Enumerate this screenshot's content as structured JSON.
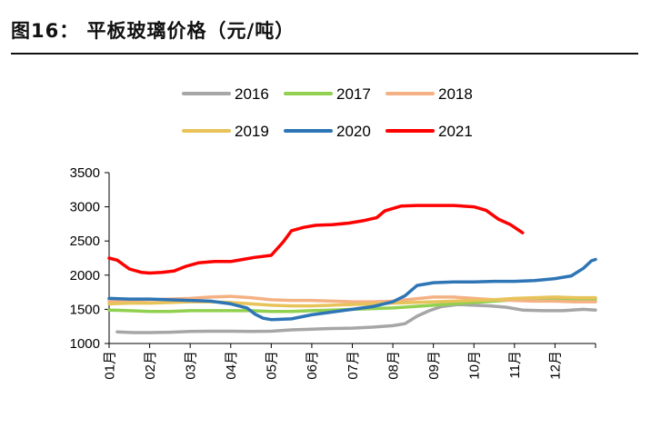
{
  "header": {
    "title": "图16：  平板玻璃价格（元/吨）"
  },
  "chart_data": {
    "type": "line",
    "title": "图16：  平板玻璃价格（元/吨）",
    "xlabel": "",
    "ylabel": "",
    "ylim": [
      1000,
      3500
    ],
    "yticks": [
      1000,
      1500,
      2000,
      2500,
      3000,
      3500
    ],
    "x_ticks": [
      "01月",
      "02月",
      "03月",
      "04月",
      "05月",
      "06月",
      "07月",
      "08月",
      "09月",
      "10月",
      "11月",
      "12月"
    ],
    "x_range": [
      1,
      13
    ],
    "grid": false,
    "legend_position": "top",
    "series": [
      {
        "name": "2016",
        "color": "#a6a6a6",
        "points": [
          [
            1.2,
            1170
          ],
          [
            1.6,
            1160
          ],
          [
            2.0,
            1160
          ],
          [
            2.5,
            1165
          ],
          [
            3.0,
            1175
          ],
          [
            3.5,
            1180
          ],
          [
            4.0,
            1180
          ],
          [
            4.5,
            1175
          ],
          [
            5.0,
            1180
          ],
          [
            5.5,
            1200
          ],
          [
            6.0,
            1210
          ],
          [
            6.5,
            1220
          ],
          [
            7.0,
            1225
          ],
          [
            7.5,
            1240
          ],
          [
            8.0,
            1260
          ],
          [
            8.3,
            1290
          ],
          [
            8.6,
            1400
          ],
          [
            8.9,
            1480
          ],
          [
            9.2,
            1540
          ],
          [
            9.6,
            1570
          ],
          [
            10.0,
            1560
          ],
          [
            10.4,
            1550
          ],
          [
            10.8,
            1530
          ],
          [
            11.2,
            1490
          ],
          [
            11.7,
            1480
          ],
          [
            12.2,
            1480
          ],
          [
            12.7,
            1500
          ],
          [
            13.0,
            1490
          ]
        ]
      },
      {
        "name": "2017",
        "color": "#92d050",
        "points": [
          [
            1.0,
            1490
          ],
          [
            1.5,
            1480
          ],
          [
            2.0,
            1470
          ],
          [
            2.5,
            1470
          ],
          [
            3.0,
            1480
          ],
          [
            3.5,
            1480
          ],
          [
            4.0,
            1480
          ],
          [
            4.5,
            1480
          ],
          [
            5.0,
            1470
          ],
          [
            5.5,
            1470
          ],
          [
            6.0,
            1480
          ],
          [
            6.5,
            1490
          ],
          [
            7.0,
            1500
          ],
          [
            7.5,
            1510
          ],
          [
            8.0,
            1520
          ],
          [
            8.5,
            1540
          ],
          [
            9.0,
            1560
          ],
          [
            9.5,
            1580
          ],
          [
            10.0,
            1600
          ],
          [
            10.5,
            1620
          ],
          [
            11.0,
            1640
          ],
          [
            11.5,
            1650
          ],
          [
            12.0,
            1650
          ],
          [
            12.5,
            1650
          ],
          [
            13.0,
            1650
          ]
        ]
      },
      {
        "name": "2018",
        "color": "#f4b183",
        "points": [
          [
            1.0,
            1620
          ],
          [
            1.5,
            1630
          ],
          [
            2.0,
            1640
          ],
          [
            2.5,
            1650
          ],
          [
            3.0,
            1660
          ],
          [
            3.5,
            1680
          ],
          [
            4.0,
            1690
          ],
          [
            4.5,
            1670
          ],
          [
            5.0,
            1640
          ],
          [
            5.5,
            1630
          ],
          [
            6.0,
            1630
          ],
          [
            6.5,
            1620
          ],
          [
            7.0,
            1610
          ],
          [
            7.5,
            1610
          ],
          [
            8.0,
            1620
          ],
          [
            8.5,
            1650
          ],
          [
            9.0,
            1680
          ],
          [
            9.5,
            1680
          ],
          [
            10.0,
            1660
          ],
          [
            10.5,
            1640
          ],
          [
            11.0,
            1630
          ],
          [
            11.5,
            1620
          ],
          [
            12.0,
            1620
          ],
          [
            12.5,
            1610
          ],
          [
            13.0,
            1610
          ]
        ]
      },
      {
        "name": "2019",
        "color": "#e8c35a",
        "points": [
          [
            1.0,
            1580
          ],
          [
            1.5,
            1590
          ],
          [
            2.0,
            1590
          ],
          [
            2.5,
            1600
          ],
          [
            3.0,
            1610
          ],
          [
            3.5,
            1610
          ],
          [
            4.0,
            1600
          ],
          [
            4.5,
            1580
          ],
          [
            5.0,
            1560
          ],
          [
            5.5,
            1550
          ],
          [
            6.0,
            1550
          ],
          [
            6.5,
            1560
          ],
          [
            7.0,
            1570
          ],
          [
            7.5,
            1580
          ],
          [
            8.0,
            1590
          ],
          [
            8.5,
            1600
          ],
          [
            9.0,
            1610
          ],
          [
            9.5,
            1620
          ],
          [
            10.0,
            1630
          ],
          [
            10.5,
            1640
          ],
          [
            11.0,
            1660
          ],
          [
            11.5,
            1670
          ],
          [
            12.0,
            1680
          ],
          [
            12.5,
            1670
          ],
          [
            13.0,
            1670
          ]
        ]
      },
      {
        "name": "2020",
        "color": "#2e75b6",
        "points": [
          [
            1.0,
            1660
          ],
          [
            1.5,
            1650
          ],
          [
            2.0,
            1650
          ],
          [
            2.5,
            1640
          ],
          [
            3.0,
            1630
          ],
          [
            3.5,
            1620
          ],
          [
            4.0,
            1580
          ],
          [
            4.4,
            1520
          ],
          [
            4.6,
            1430
          ],
          [
            4.8,
            1370
          ],
          [
            5.0,
            1350
          ],
          [
            5.5,
            1360
          ],
          [
            6.0,
            1420
          ],
          [
            6.5,
            1460
          ],
          [
            7.0,
            1500
          ],
          [
            7.5,
            1540
          ],
          [
            8.0,
            1610
          ],
          [
            8.3,
            1700
          ],
          [
            8.6,
            1850
          ],
          [
            9.0,
            1890
          ],
          [
            9.5,
            1900
          ],
          [
            10.0,
            1900
          ],
          [
            10.5,
            1910
          ],
          [
            11.0,
            1910
          ],
          [
            11.5,
            1920
          ],
          [
            12.0,
            1950
          ],
          [
            12.4,
            1990
          ],
          [
            12.7,
            2100
          ],
          [
            12.9,
            2210
          ],
          [
            13.0,
            2230
          ]
        ]
      },
      {
        "name": "2021",
        "color": "#ff0000",
        "points": [
          [
            1.0,
            2250
          ],
          [
            1.2,
            2220
          ],
          [
            1.5,
            2090
          ],
          [
            1.8,
            2040
          ],
          [
            2.0,
            2030
          ],
          [
            2.3,
            2040
          ],
          [
            2.6,
            2060
          ],
          [
            2.9,
            2130
          ],
          [
            3.2,
            2180
          ],
          [
            3.6,
            2200
          ],
          [
            4.0,
            2200
          ],
          [
            4.3,
            2230
          ],
          [
            4.6,
            2260
          ],
          [
            5.0,
            2290
          ],
          [
            5.3,
            2490
          ],
          [
            5.5,
            2650
          ],
          [
            5.8,
            2700
          ],
          [
            6.1,
            2730
          ],
          [
            6.5,
            2740
          ],
          [
            6.9,
            2760
          ],
          [
            7.3,
            2800
          ],
          [
            7.6,
            2840
          ],
          [
            7.8,
            2940
          ],
          [
            8.2,
            3010
          ],
          [
            8.6,
            3020
          ],
          [
            9.0,
            3020
          ],
          [
            9.5,
            3020
          ],
          [
            10.0,
            3000
          ],
          [
            10.3,
            2950
          ],
          [
            10.6,
            2820
          ],
          [
            10.9,
            2740
          ],
          [
            11.2,
            2620
          ]
        ]
      }
    ]
  }
}
